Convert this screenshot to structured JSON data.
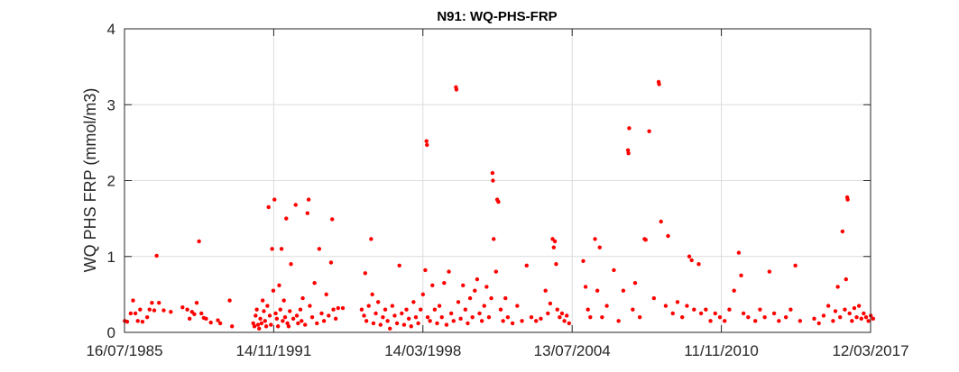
{
  "chart_data": {
    "type": "scatter",
    "title": "N91: WQ-PHS-FRP",
    "xlabel": "",
    "ylabel": "WQ PHS FRP (mmol/m3)",
    "xlim": [
      "1985-07-16",
      "2017-03-12"
    ],
    "ylim": [
      0,
      4
    ],
    "xticks": [
      "16/07/1985",
      "14/11/1991",
      "14/03/1998",
      "13/07/2004",
      "11/11/2010",
      "12/03/2017"
    ],
    "yticks": [
      "0",
      "1",
      "2",
      "3",
      "4"
    ],
    "grid": true,
    "marker_color": "#ff0000",
    "series": [
      {
        "name": "WQ PHS FRP",
        "points": [
          [
            1985.55,
            0.15
          ],
          [
            1985.65,
            0.14
          ],
          [
            1985.8,
            0.25
          ],
          [
            1985.9,
            0.42
          ],
          [
            1986.0,
            0.25
          ],
          [
            1986.1,
            0.15
          ],
          [
            1986.2,
            0.3
          ],
          [
            1986.3,
            0.14
          ],
          [
            1986.5,
            0.2
          ],
          [
            1986.6,
            0.3
          ],
          [
            1986.7,
            0.39
          ],
          [
            1986.8,
            0.29
          ],
          [
            1986.9,
            1.01
          ],
          [
            1987.0,
            0.39
          ],
          [
            1987.2,
            0.29
          ],
          [
            1987.5,
            0.27
          ],
          [
            1988.0,
            0.33
          ],
          [
            1988.2,
            0.3
          ],
          [
            1988.3,
            0.18
          ],
          [
            1988.4,
            0.27
          ],
          [
            1988.5,
            0.24
          ],
          [
            1988.6,
            0.39
          ],
          [
            1988.7,
            1.2
          ],
          [
            1988.8,
            0.25
          ],
          [
            1988.9,
            0.19
          ],
          [
            1989.0,
            0.18
          ],
          [
            1989.2,
            0.13
          ],
          [
            1989.5,
            0.16
          ],
          [
            1989.6,
            0.12
          ],
          [
            1990.0,
            0.42
          ],
          [
            1990.1,
            0.08
          ],
          [
            1991.0,
            0.12
          ],
          [
            1991.05,
            0.08
          ],
          [
            1991.1,
            0.22
          ],
          [
            1991.15,
            0.3
          ],
          [
            1991.2,
            0.1
          ],
          [
            1991.25,
            0.05
          ],
          [
            1991.3,
            0.18
          ],
          [
            1991.35,
            0.12
          ],
          [
            1991.4,
            0.42
          ],
          [
            1991.45,
            0.28
          ],
          [
            1991.5,
            0.15
          ],
          [
            1991.55,
            0.08
          ],
          [
            1991.6,
            0.35
          ],
          [
            1991.65,
            1.65
          ],
          [
            1991.7,
            0.22
          ],
          [
            1991.75,
            0.1
          ],
          [
            1991.8,
            1.1
          ],
          [
            1991.85,
            0.55
          ],
          [
            1991.9,
            1.75
          ],
          [
            1991.95,
            0.25
          ],
          [
            1992.0,
            0.18
          ],
          [
            1992.05,
            0.08
          ],
          [
            1992.1,
            0.62
          ],
          [
            1992.15,
            0.3
          ],
          [
            1992.2,
            1.1
          ],
          [
            1992.25,
            0.15
          ],
          [
            1992.3,
            0.42
          ],
          [
            1992.35,
            0.2
          ],
          [
            1992.4,
            1.5
          ],
          [
            1992.45,
            0.12
          ],
          [
            1992.5,
            0.08
          ],
          [
            1992.55,
            0.28
          ],
          [
            1992.6,
            0.9
          ],
          [
            1992.7,
            0.18
          ],
          [
            1992.8,
            1.68
          ],
          [
            1992.85,
            0.22
          ],
          [
            1992.9,
            0.12
          ],
          [
            1993.0,
            0.3
          ],
          [
            1993.05,
            0.15
          ],
          [
            1993.1,
            0.45
          ],
          [
            1993.2,
            0.1
          ],
          [
            1993.3,
            1.57
          ],
          [
            1993.35,
            1.75
          ],
          [
            1993.4,
            0.35
          ],
          [
            1993.5,
            0.2
          ],
          [
            1993.6,
            0.65
          ],
          [
            1993.7,
            0.12
          ],
          [
            1993.8,
            1.1
          ],
          [
            1993.9,
            0.25
          ],
          [
            1994.0,
            0.15
          ],
          [
            1994.1,
            0.5
          ],
          [
            1994.2,
            0.22
          ],
          [
            1994.3,
            0.92
          ],
          [
            1994.35,
            1.49
          ],
          [
            1994.4,
            0.3
          ],
          [
            1994.5,
            0.18
          ],
          [
            1994.6,
            0.32
          ],
          [
            1994.8,
            0.32
          ],
          [
            1995.6,
            0.3
          ],
          [
            1995.7,
            0.22
          ],
          [
            1995.75,
            0.78
          ],
          [
            1995.8,
            0.15
          ],
          [
            1995.9,
            0.35
          ],
          [
            1996.0,
            1.23
          ],
          [
            1996.05,
            0.5
          ],
          [
            1996.1,
            0.12
          ],
          [
            1996.2,
            0.25
          ],
          [
            1996.3,
            0.4
          ],
          [
            1996.4,
            0.1
          ],
          [
            1996.5,
            0.2
          ],
          [
            1996.6,
            0.3
          ],
          [
            1996.7,
            0.15
          ],
          [
            1996.8,
            0.05
          ],
          [
            1996.9,
            0.35
          ],
          [
            1997.0,
            0.22
          ],
          [
            1997.1,
            0.12
          ],
          [
            1997.2,
            0.88
          ],
          [
            1997.3,
            0.25
          ],
          [
            1997.4,
            0.1
          ],
          [
            1997.5,
            0.3
          ],
          [
            1997.6,
            0.18
          ],
          [
            1997.7,
            0.08
          ],
          [
            1997.8,
            0.4
          ],
          [
            1997.9,
            0.2
          ],
          [
            1998.0,
            0.12
          ],
          [
            1998.1,
            0.3
          ],
          [
            1998.2,
            0.5
          ],
          [
            1998.3,
            0.82
          ],
          [
            1998.35,
            2.52
          ],
          [
            1998.37,
            2.47
          ],
          [
            1998.4,
            0.2
          ],
          [
            1998.5,
            0.15
          ],
          [
            1998.6,
            0.62
          ],
          [
            1998.7,
            0.3
          ],
          [
            1998.8,
            0.12
          ],
          [
            1998.9,
            0.35
          ],
          [
            1999.0,
            0.2
          ],
          [
            1999.1,
            0.65
          ],
          [
            1999.2,
            0.1
          ],
          [
            1999.3,
            0.8
          ],
          [
            1999.4,
            0.25
          ],
          [
            1999.5,
            0.15
          ],
          [
            1999.6,
            3.23
          ],
          [
            1999.62,
            3.2
          ],
          [
            1999.7,
            0.4
          ],
          [
            1999.8,
            0.18
          ],
          [
            1999.9,
            0.62
          ],
          [
            2000.0,
            0.3
          ],
          [
            2000.1,
            0.12
          ],
          [
            2000.2,
            0.45
          ],
          [
            2000.3,
            0.2
          ],
          [
            2000.4,
            0.55
          ],
          [
            2000.5,
            0.7
          ],
          [
            2000.6,
            0.25
          ],
          [
            2000.7,
            0.15
          ],
          [
            2000.8,
            0.35
          ],
          [
            2000.9,
            0.6
          ],
          [
            2001.0,
            0.2
          ],
          [
            2001.1,
            0.45
          ],
          [
            2001.15,
            2.1
          ],
          [
            2001.17,
            2.0
          ],
          [
            2001.2,
            1.23
          ],
          [
            2001.3,
            0.8
          ],
          [
            2001.35,
            1.75
          ],
          [
            2001.4,
            1.72
          ],
          [
            2001.5,
            0.3
          ],
          [
            2001.6,
            0.15
          ],
          [
            2001.7,
            0.45
          ],
          [
            2001.8,
            0.2
          ],
          [
            2002.0,
            0.12
          ],
          [
            2002.2,
            0.35
          ],
          [
            2002.4,
            0.15
          ],
          [
            2002.6,
            0.88
          ],
          [
            2002.8,
            0.2
          ],
          [
            2003.0,
            0.15
          ],
          [
            2003.2,
            0.18
          ],
          [
            2003.4,
            0.55
          ],
          [
            2003.5,
            0.25
          ],
          [
            2003.6,
            0.38
          ],
          [
            2003.7,
            1.23
          ],
          [
            2003.75,
            1.12
          ],
          [
            2003.8,
            1.2
          ],
          [
            2003.85,
            0.9
          ],
          [
            2003.9,
            0.3
          ],
          [
            2004.0,
            0.2
          ],
          [
            2004.1,
            0.25
          ],
          [
            2004.2,
            0.15
          ],
          [
            2004.3,
            0.22
          ],
          [
            2004.4,
            0.12
          ],
          [
            2005.0,
            0.94
          ],
          [
            2005.1,
            0.6
          ],
          [
            2005.2,
            0.3
          ],
          [
            2005.3,
            0.2
          ],
          [
            2005.5,
            1.23
          ],
          [
            2005.6,
            0.55
          ],
          [
            2005.7,
            1.12
          ],
          [
            2005.8,
            0.2
          ],
          [
            2006.0,
            0.35
          ],
          [
            2006.3,
            0.82
          ],
          [
            2006.5,
            0.15
          ],
          [
            2006.7,
            0.55
          ],
          [
            2006.9,
            2.4
          ],
          [
            2006.92,
            2.36
          ],
          [
            2006.95,
            2.69
          ],
          [
            2007.1,
            0.3
          ],
          [
            2007.2,
            0.65
          ],
          [
            2007.4,
            0.2
          ],
          [
            2007.6,
            1.23
          ],
          [
            2007.65,
            1.22
          ],
          [
            2007.8,
            2.65
          ],
          [
            2008.0,
            0.45
          ],
          [
            2008.2,
            3.3
          ],
          [
            2008.22,
            3.27
          ],
          [
            2008.3,
            1.46
          ],
          [
            2008.5,
            0.35
          ],
          [
            2008.6,
            1.27
          ],
          [
            2008.8,
            0.25
          ],
          [
            2009.0,
            0.4
          ],
          [
            2009.2,
            0.2
          ],
          [
            2009.4,
            0.35
          ],
          [
            2009.5,
            1.0
          ],
          [
            2009.6,
            0.95
          ],
          [
            2009.7,
            0.3
          ],
          [
            2009.9,
            0.9
          ],
          [
            2010.0,
            0.25
          ],
          [
            2010.2,
            0.3
          ],
          [
            2010.4,
            0.15
          ],
          [
            2010.6,
            0.25
          ],
          [
            2010.8,
            0.2
          ],
          [
            2011.0,
            0.15
          ],
          [
            2011.2,
            0.3
          ],
          [
            2011.4,
            0.55
          ],
          [
            2011.6,
            1.05
          ],
          [
            2011.7,
            0.75
          ],
          [
            2011.8,
            0.25
          ],
          [
            2012.0,
            0.2
          ],
          [
            2012.3,
            0.15
          ],
          [
            2012.5,
            0.3
          ],
          [
            2012.7,
            0.2
          ],
          [
            2012.9,
            0.8
          ],
          [
            2013.1,
            0.25
          ],
          [
            2013.3,
            0.15
          ],
          [
            2013.6,
            0.2
          ],
          [
            2013.8,
            0.3
          ],
          [
            2014.0,
            0.88
          ],
          [
            2014.2,
            0.15
          ],
          [
            2014.8,
            0.18
          ],
          [
            2015.0,
            0.12
          ],
          [
            2015.2,
            0.22
          ],
          [
            2015.4,
            0.35
          ],
          [
            2015.6,
            0.15
          ],
          [
            2015.7,
            0.28
          ],
          [
            2015.8,
            0.6
          ],
          [
            2015.9,
            0.2
          ],
          [
            2016.0,
            1.33
          ],
          [
            2016.1,
            0.3
          ],
          [
            2016.15,
            0.7
          ],
          [
            2016.2,
            1.78
          ],
          [
            2016.22,
            1.75
          ],
          [
            2016.3,
            0.25
          ],
          [
            2016.4,
            0.15
          ],
          [
            2016.5,
            0.32
          ],
          [
            2016.6,
            0.2
          ],
          [
            2016.7,
            0.35
          ],
          [
            2016.8,
            0.18
          ],
          [
            2016.9,
            0.25
          ],
          [
            2017.0,
            0.2
          ],
          [
            2017.1,
            0.15
          ],
          [
            2017.2,
            0.22
          ],
          [
            2017.3,
            0.18
          ]
        ]
      }
    ]
  }
}
